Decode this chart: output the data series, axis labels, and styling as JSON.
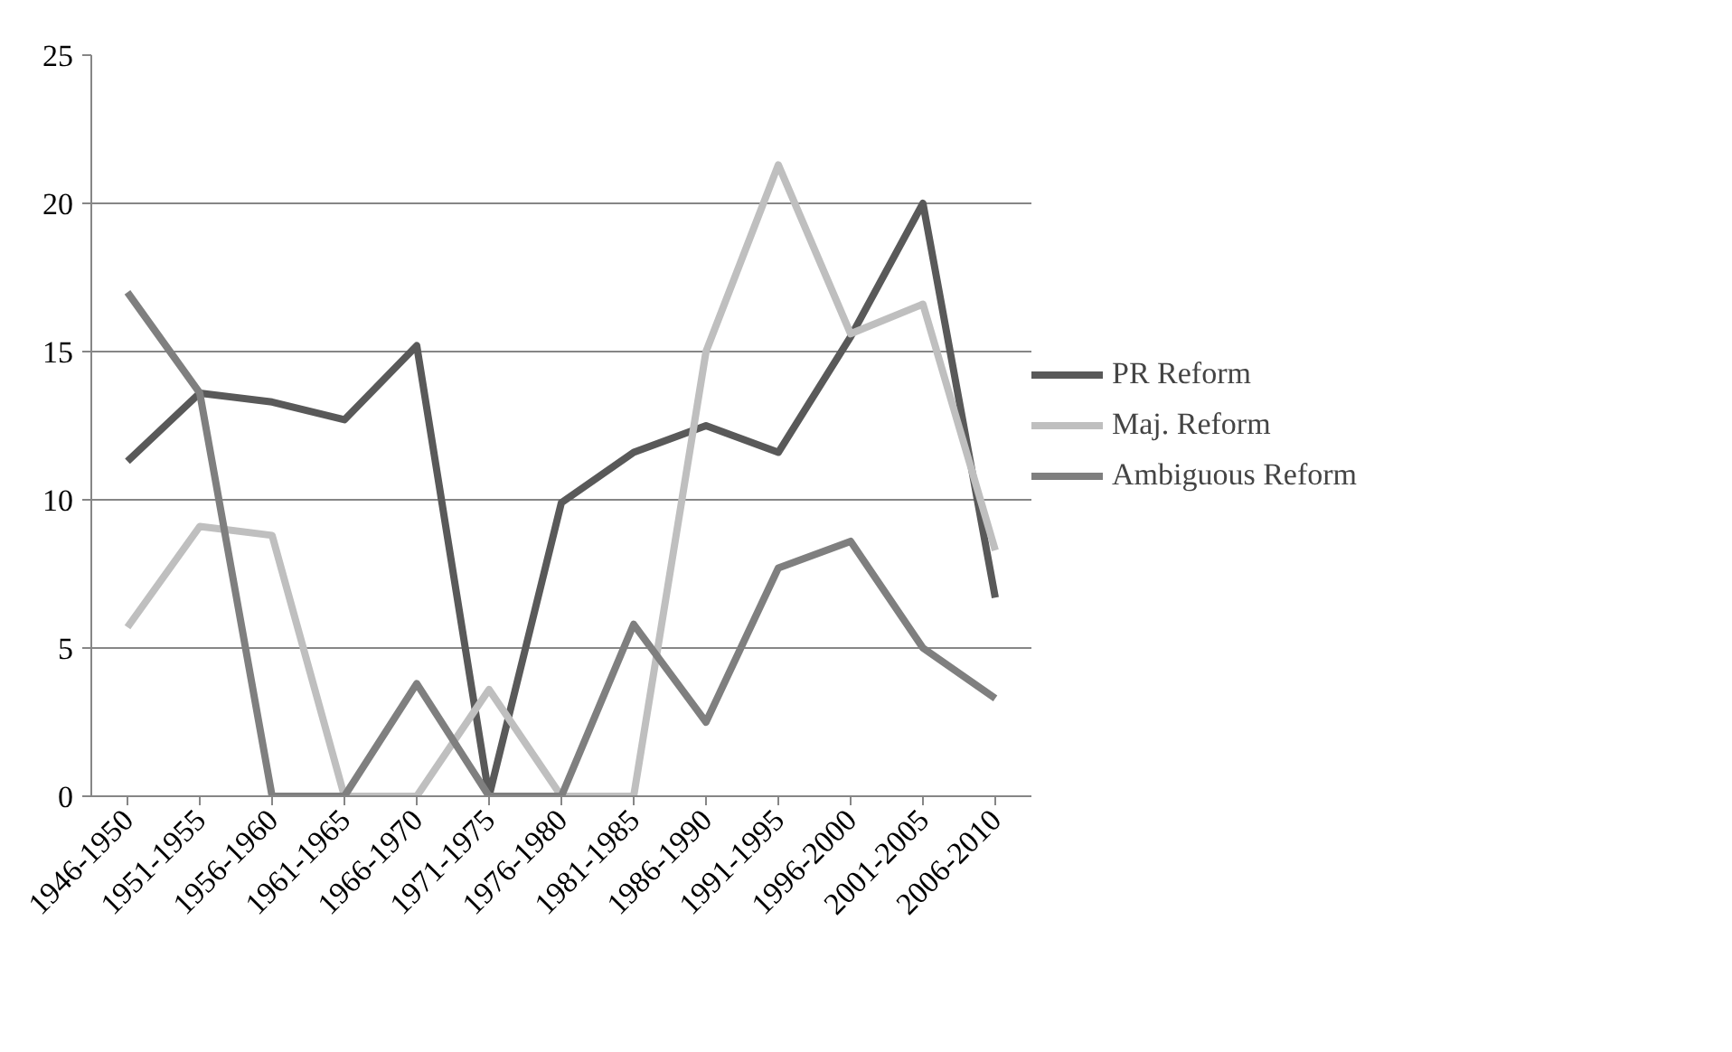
{
  "chart_data": {
    "type": "line",
    "categories": [
      "1946-1950",
      "1951-1955",
      "1956-1960",
      "1961-1965",
      "1966-1970",
      "1971-1975",
      "1976-1980",
      "1981-1985",
      "1986-1990",
      "1991-1995",
      "1996-2000",
      "2001-2005",
      "2006-2010"
    ],
    "series": [
      {
        "name": "PR Reform",
        "color": "#595959",
        "values": [
          11.3,
          13.6,
          13.3,
          12.7,
          15.2,
          0,
          9.9,
          11.6,
          12.5,
          11.6,
          15.5,
          20,
          6.7
        ]
      },
      {
        "name": "Maj. Reform",
        "color": "#bfbfbf",
        "values": [
          5.7,
          9.1,
          8.8,
          0,
          0,
          3.6,
          0,
          0,
          15,
          21.3,
          15.6,
          16.6,
          8.3
        ]
      },
      {
        "name": "Ambiguous Reform",
        "color": "#7f7f7f",
        "values": [
          17,
          13.6,
          0,
          0,
          3.8,
          0,
          0,
          5.8,
          2.5,
          7.7,
          8.6,
          5,
          3.3
        ]
      }
    ],
    "ylim": [
      0,
      25
    ],
    "yticks": [
      0,
      5,
      10,
      15,
      20,
      25
    ],
    "grid": "y",
    "legend": "right",
    "marker": "none",
    "line_style": "solid"
  }
}
